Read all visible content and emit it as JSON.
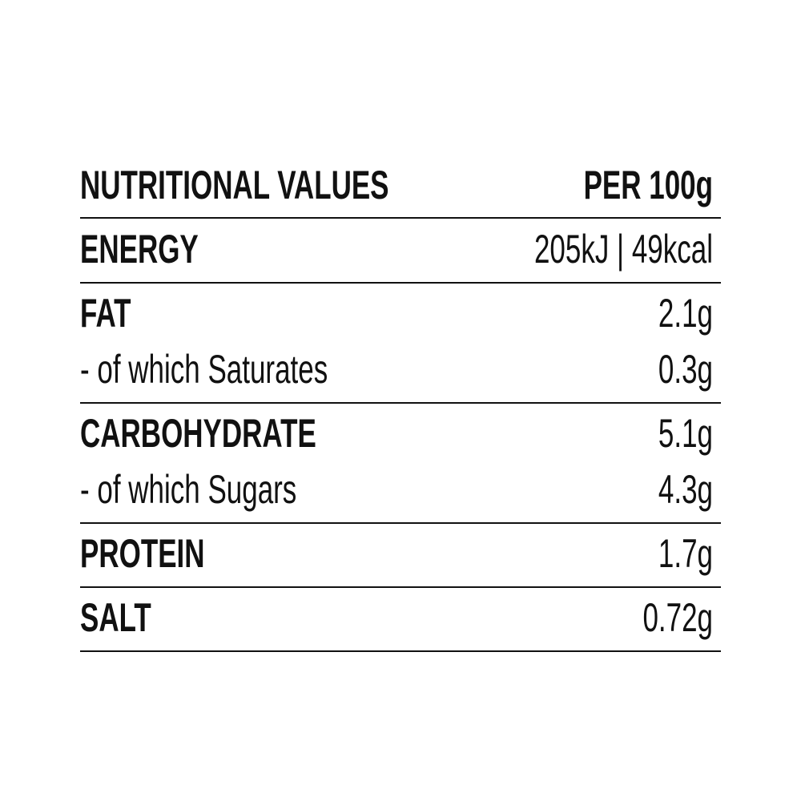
{
  "table": {
    "header": {
      "label": "NUTRITIONAL VALUES",
      "value": "PER 100g"
    },
    "rows": [
      {
        "label": "ENERGY",
        "value": "205kJ | 49kcal"
      },
      {
        "label": "FAT",
        "value": "2.1g"
      },
      {
        "label": "- of which Saturates",
        "value": "0.3g"
      },
      {
        "label": "CARBOHYDRATE",
        "value": "5.1g"
      },
      {
        "label": "- of which Sugars",
        "value": "4.3g"
      },
      {
        "label": "PROTEIN",
        "value": "1.7g"
      },
      {
        "label": "SALT",
        "value": "0.72g"
      }
    ]
  }
}
